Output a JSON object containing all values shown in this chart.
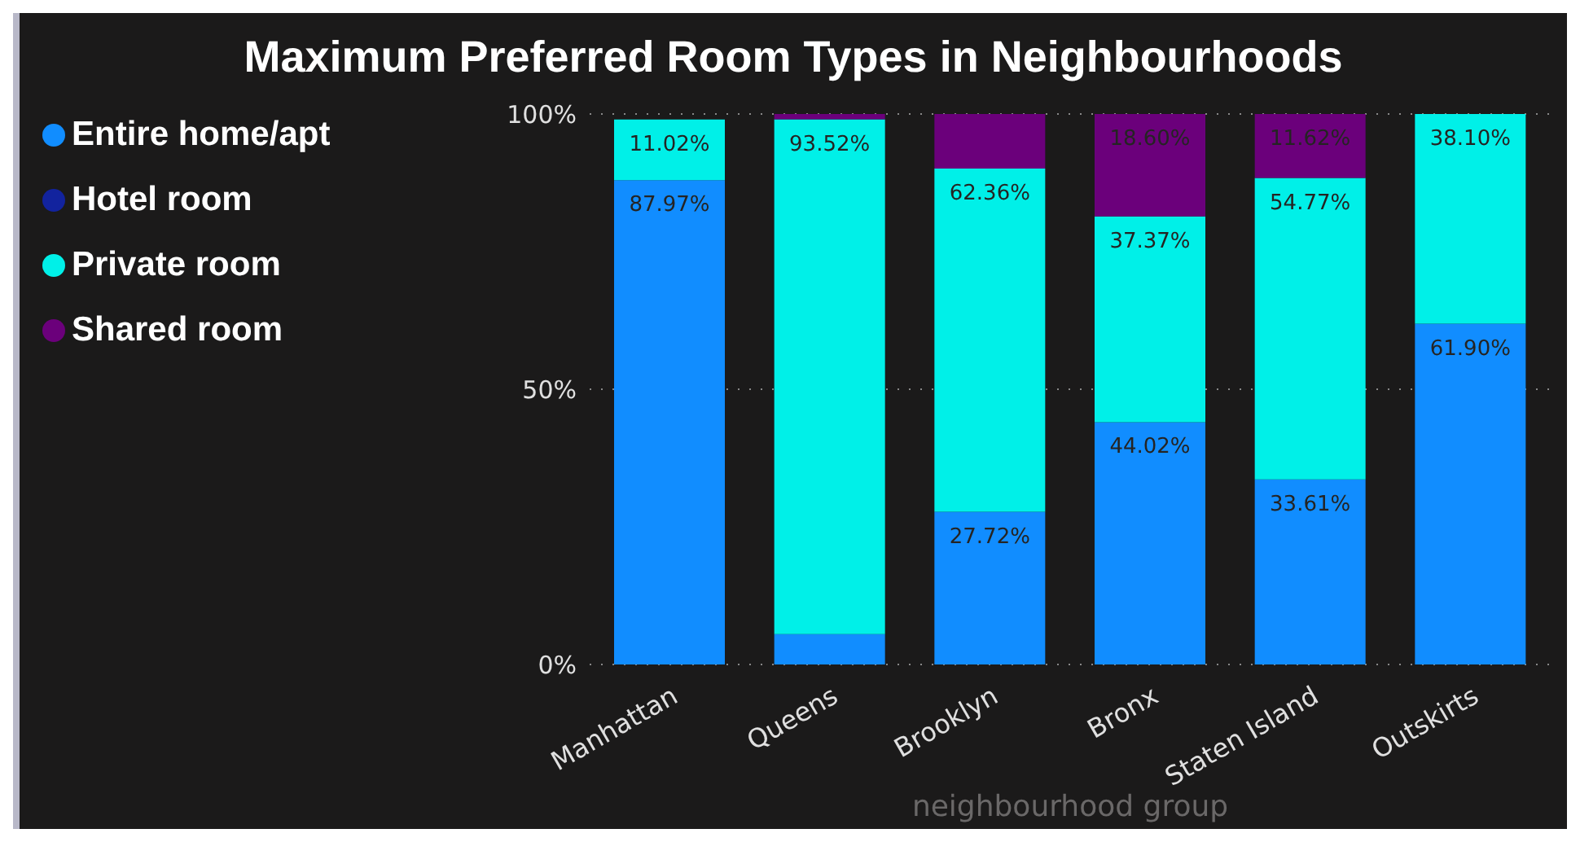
{
  "chart_data": {
    "type": "bar",
    "title": "Maximum Preferred Room Types in Neighbourhoods",
    "xlabel": "neighbourhood group",
    "categories": [
      "Manhattan",
      "Queens",
      "Brooklyn",
      "Bronx",
      "Staten Island",
      "Outskirts"
    ],
    "stacked": true,
    "series": [
      {
        "name": "Entire home/apt",
        "color": "#118dff",
        "values": [
          87.97,
          5.5,
          27.72,
          44.02,
          33.61,
          61.9
        ],
        "value_labels": [
          "87.97%",
          null,
          "27.72%",
          "44.02%",
          "33.61%",
          "61.90%"
        ]
      },
      {
        "name": "Hotel room",
        "color": "#12239e",
        "values": [
          null,
          null,
          null,
          null,
          null,
          null
        ]
      },
      {
        "name": "Private room",
        "color": "#00f0e8",
        "values": [
          11.02,
          93.52,
          62.36,
          37.37,
          54.77,
          38.1
        ],
        "value_labels": [
          "11.02%",
          "93.52%",
          "62.36%",
          "37.37%",
          "54.77%",
          "38.10%"
        ]
      },
      {
        "name": "Shared room",
        "color": "#6b007b",
        "values": [
          null,
          1,
          10,
          18.6,
          11.62,
          null
        ],
        "value_labels": [
          null,
          null,
          null,
          "18.60%",
          "11.62%",
          null
        ]
      }
    ],
    "ylim": [
      0,
      100
    ],
    "yticks": [
      {
        "value": 0,
        "label": "0%"
      },
      {
        "value": 50,
        "label": "50%"
      },
      {
        "value": 100,
        "label": "100%"
      }
    ],
    "grid": "y",
    "legend": "left"
  }
}
